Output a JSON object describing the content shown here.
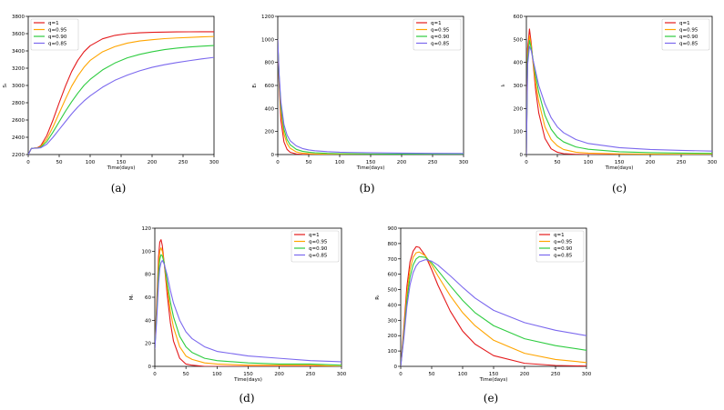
{
  "figure": {
    "panel_labels": [
      "(a)",
      "(b)",
      "(c)",
      "(d)",
      "(e)"
    ]
  },
  "series_styles": [
    {
      "name": "q=1",
      "color": "#e41a1c"
    },
    {
      "name": "q=0.95",
      "color": "#ffa500"
    },
    {
      "name": "q=0.90",
      "color": "#2ecc40"
    },
    {
      "name": "q=0.85",
      "color": "#7b68ee"
    }
  ],
  "chart_data": [
    {
      "type": "line",
      "id": "a",
      "title": "",
      "xlabel": "Time(days)",
      "ylabel": "Sₜ",
      "xlim": [
        0,
        300
      ],
      "ylim": [
        2200,
        3800
      ],
      "xticks": [
        0,
        50,
        100,
        150,
        200,
        250,
        300
      ],
      "yticks": [
        2200,
        2400,
        2600,
        2800,
        3000,
        3200,
        3400,
        3600,
        3800
      ],
      "legend": "top-left",
      "x": [
        0,
        5,
        10,
        15,
        20,
        30,
        40,
        50,
        60,
        70,
        80,
        90,
        100,
        120,
        140,
        160,
        180,
        200,
        220,
        240,
        260,
        280,
        300
      ],
      "series": [
        {
          "name": "q=1",
          "values": [
            2200,
            2270,
            2275,
            2280,
            2300,
            2420,
            2600,
            2800,
            2990,
            3160,
            3290,
            3390,
            3460,
            3540,
            3580,
            3600,
            3610,
            3615,
            3618,
            3620,
            3621,
            3622,
            3622
          ]
        },
        {
          "name": "q=0.95",
          "values": [
            2200,
            2270,
            2275,
            2278,
            2290,
            2380,
            2520,
            2680,
            2840,
            2990,
            3110,
            3210,
            3290,
            3390,
            3450,
            3490,
            3515,
            3530,
            3542,
            3550,
            3556,
            3562,
            3567
          ]
        },
        {
          "name": "q=0.90",
          "values": [
            2200,
            2270,
            2274,
            2276,
            2284,
            2350,
            2460,
            2580,
            2700,
            2810,
            2910,
            3000,
            3070,
            3180,
            3260,
            3320,
            3360,
            3390,
            3415,
            3432,
            3445,
            3455,
            3462
          ]
        },
        {
          "name": "q=0.85",
          "values": [
            2200,
            2270,
            2273,
            2274,
            2278,
            2320,
            2400,
            2490,
            2580,
            2670,
            2750,
            2820,
            2880,
            2980,
            3060,
            3120,
            3170,
            3210,
            3240,
            3265,
            3287,
            3307,
            3325
          ]
        }
      ]
    },
    {
      "type": "line",
      "id": "b",
      "title": "",
      "xlabel": "Time(days)",
      "ylabel": "Eₜ",
      "xlim": [
        0,
        300
      ],
      "ylim": [
        0,
        1200
      ],
      "xticks": [
        0,
        50,
        100,
        150,
        200,
        250,
        300
      ],
      "yticks": [
        0,
        200,
        400,
        600,
        800,
        1000,
        1200
      ],
      "legend": "top-right",
      "x": [
        0,
        2,
        5,
        10,
        15,
        20,
        30,
        40,
        50,
        60,
        80,
        100,
        150,
        200,
        250,
        300
      ],
      "series": [
        {
          "name": "q=1",
          "values": [
            1000,
            650,
            300,
            110,
            45,
            20,
            5,
            2,
            1,
            0,
            0,
            0,
            0,
            0,
            0,
            0
          ]
        },
        {
          "name": "q=0.95",
          "values": [
            1000,
            680,
            380,
            180,
            95,
            55,
            22,
            12,
            7,
            5,
            3,
            2,
            1,
            1,
            1,
            1
          ]
        },
        {
          "name": "q=0.90",
          "values": [
            1000,
            700,
            420,
            220,
            130,
            85,
            45,
            28,
            20,
            15,
            10,
            8,
            5,
            4,
            3,
            3
          ]
        },
        {
          "name": "q=0.85",
          "values": [
            1000,
            720,
            460,
            260,
            170,
            120,
            75,
            52,
            40,
            33,
            25,
            20,
            15,
            12,
            10,
            9
          ]
        }
      ]
    },
    {
      "type": "line",
      "id": "c",
      "title": "",
      "xlabel": "Time(days)",
      "ylabel": "Iₜ",
      "xlim": [
        0,
        300
      ],
      "ylim": [
        0,
        600
      ],
      "xticks": [
        0,
        50,
        100,
        150,
        200,
        250,
        300
      ],
      "yticks": [
        0,
        100,
        200,
        300,
        400,
        500,
        600
      ],
      "legend": "top-right",
      "x": [
        0,
        2,
        5,
        8,
        10,
        15,
        20,
        30,
        40,
        50,
        60,
        80,
        100,
        150,
        200,
        250,
        300
      ],
      "series": [
        {
          "name": "q=1",
          "values": [
            0,
            460,
            545,
            480,
            420,
            280,
            180,
            70,
            25,
            10,
            4,
            1,
            0,
            0,
            0,
            0,
            0
          ]
        },
        {
          "name": "q=0.95",
          "values": [
            0,
            430,
            515,
            470,
            420,
            310,
            230,
            120,
            65,
            38,
            22,
            10,
            6,
            3,
            2,
            1,
            1
          ]
        },
        {
          "name": "q=0.90",
          "values": [
            0,
            410,
            495,
            460,
            425,
            340,
            270,
            170,
            110,
            75,
            55,
            33,
            23,
            12,
            8,
            6,
            5
          ]
        },
        {
          "name": "q=0.85",
          "values": [
            0,
            390,
            470,
            450,
            420,
            360,
            300,
            220,
            160,
            120,
            95,
            65,
            48,
            30,
            22,
            18,
            15
          ]
        }
      ]
    },
    {
      "type": "line",
      "id": "d",
      "title": "",
      "xlabel": "Time(days)",
      "ylabel": "Mₜ",
      "xlim": [
        0,
        300
      ],
      "ylim": [
        0,
        120
      ],
      "xticks": [
        0,
        50,
        100,
        150,
        200,
        250,
        300
      ],
      "yticks": [
        0,
        20,
        40,
        60,
        80,
        100,
        120
      ],
      "legend": "top-right",
      "x": [
        0,
        3,
        6,
        8,
        10,
        12,
        15,
        20,
        25,
        30,
        40,
        50,
        60,
        80,
        100,
        150,
        200,
        250,
        300
      ],
      "series": [
        {
          "name": "q=1",
          "values": [
            15,
            55,
            95,
            108,
            110,
            105,
            90,
            62,
            38,
            22,
            7,
            2,
            1,
            0,
            0,
            0,
            0,
            0,
            0
          ]
        },
        {
          "name": "q=0.95",
          "values": [
            15,
            50,
            88,
            100,
            103,
            100,
            90,
            68,
            48,
            34,
            17,
            9,
            6,
            3,
            2,
            1,
            1,
            1,
            0
          ]
        },
        {
          "name": "q=0.90",
          "values": [
            15,
            45,
            80,
            93,
            97,
            96,
            90,
            73,
            56,
            43,
            26,
            17,
            12,
            7,
            5,
            3,
            2,
            2,
            1
          ]
        },
        {
          "name": "q=0.85",
          "values": [
            15,
            40,
            72,
            85,
            90,
            92,
            89,
            79,
            66,
            55,
            40,
            30,
            24,
            17,
            13,
            9,
            7,
            5,
            4
          ]
        }
      ]
    },
    {
      "type": "line",
      "id": "e",
      "title": "",
      "xlabel": "Time(days)",
      "ylabel": "Rₜ",
      "xlim": [
        0,
        300
      ],
      "ylim": [
        0,
        900
      ],
      "xticks": [
        0,
        50,
        100,
        150,
        200,
        250,
        300
      ],
      "yticks": [
        0,
        100,
        200,
        300,
        400,
        500,
        600,
        700,
        800,
        900
      ],
      "legend": "top-right",
      "x": [
        0,
        5,
        10,
        15,
        20,
        25,
        30,
        40,
        50,
        60,
        80,
        100,
        120,
        150,
        200,
        250,
        300
      ],
      "series": [
        {
          "name": "q=1",
          "values": [
            0,
            250,
            520,
            680,
            750,
            780,
            775,
            720,
            630,
            530,
            360,
            230,
            145,
            70,
            20,
            6,
            2
          ]
        },
        {
          "name": "q=0.95",
          "values": [
            0,
            220,
            470,
            630,
            710,
            740,
            745,
            720,
            660,
            590,
            460,
            350,
            265,
            170,
            85,
            45,
            25
          ]
        },
        {
          "name": "q=0.90",
          "values": [
            0,
            200,
            430,
            580,
            660,
            700,
            715,
            710,
            675,
            625,
            525,
            430,
            350,
            265,
            180,
            135,
            105
          ]
        },
        {
          "name": "q=0.85",
          "values": [
            0,
            180,
            390,
            530,
            610,
            655,
            680,
            695,
            685,
            660,
            590,
            515,
            445,
            365,
            285,
            235,
            200
          ]
        }
      ]
    }
  ]
}
